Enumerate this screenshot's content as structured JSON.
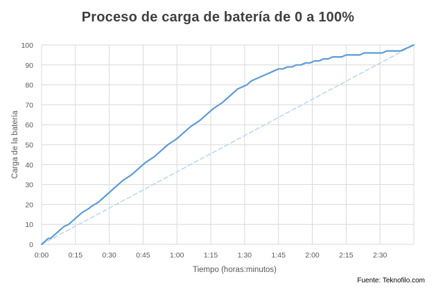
{
  "chart_data": {
    "type": "line",
    "title": "Proceso de carga de batería de 0 a 100%",
    "xlabel": "Tiempo (horas:minutos)",
    "ylabel": "Carga de la batería",
    "xlim": [
      0,
      165
    ],
    "ylim": [
      0,
      100
    ],
    "grid": true,
    "x_ticks": [
      {
        "value": 0,
        "label": "0:00"
      },
      {
        "value": 15,
        "label": "0:15"
      },
      {
        "value": 30,
        "label": "0:30"
      },
      {
        "value": 45,
        "label": "0:45"
      },
      {
        "value": 60,
        "label": "1:00"
      },
      {
        "value": 75,
        "label": "1:15"
      },
      {
        "value": 90,
        "label": "1:30"
      },
      {
        "value": 105,
        "label": "1:45"
      },
      {
        "value": 120,
        "label": "2:00"
      },
      {
        "value": 135,
        "label": "2:15"
      },
      {
        "value": 150,
        "label": "2:30"
      }
    ],
    "y_ticks": [
      0,
      10,
      20,
      30,
      40,
      50,
      60,
      70,
      80,
      90,
      100
    ],
    "series": [
      {
        "style": "solid",
        "color": "#5b9bd5",
        "x": [
          0,
          2,
          3,
          4,
          5,
          7,
          9,
          10,
          12,
          15,
          16,
          18,
          21,
          22,
          25,
          30,
          35,
          36,
          40,
          45,
          46,
          50,
          55,
          56,
          60,
          65,
          66,
          70,
          75,
          76,
          80,
          85,
          87,
          89,
          91,
          93,
          95,
          97,
          99,
          101,
          103,
          105,
          107,
          109,
          111,
          113,
          115,
          117,
          119,
          121,
          123,
          125,
          127,
          129,
          131,
          133,
          135,
          137,
          139,
          141,
          143,
          145,
          147,
          149,
          151,
          153,
          155,
          157,
          159,
          161,
          163,
          165
        ],
        "y": [
          0,
          2,
          3,
          3,
          4,
          6,
          8,
          9,
          10,
          13,
          14,
          16,
          18,
          19,
          21,
          26,
          31,
          32,
          35,
          40,
          41,
          44,
          49,
          50,
          53,
          58,
          59,
          62,
          67,
          68,
          71,
          76,
          78,
          79,
          80,
          82,
          83,
          84,
          85,
          86,
          87,
          88,
          88,
          89,
          89,
          90,
          90,
          91,
          91,
          92,
          92,
          93,
          93,
          94,
          94,
          94,
          95,
          95,
          95,
          95,
          96,
          96,
          96,
          96,
          96,
          97,
          97,
          97,
          97,
          98,
          99,
          100
        ]
      },
      {
        "style": "dashed",
        "color": "#bdd7ee",
        "x": [
          0,
          165
        ],
        "y": [
          0,
          100
        ]
      }
    ]
  },
  "source_text": "Fuente: Teknofilo.com"
}
